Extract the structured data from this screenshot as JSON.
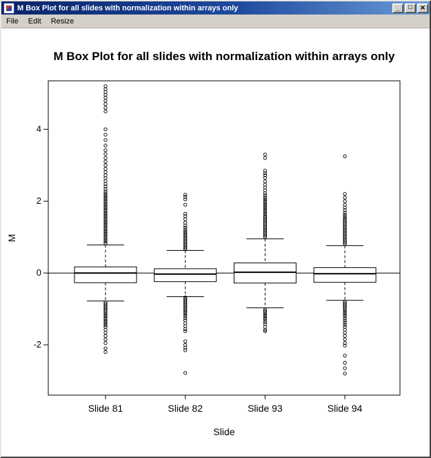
{
  "window": {
    "title": "M Box Plot for all slides with normalization within arrays only",
    "controls": {
      "minimize": "_",
      "maximize": "□",
      "close": "×"
    },
    "menus": [
      {
        "label": "File"
      },
      {
        "label": "Edit"
      },
      {
        "label": "Resize"
      }
    ]
  },
  "chart_data": {
    "type": "boxplot",
    "title": "M Box Plot for all slides with normalization within arrays only",
    "xlabel": "Slide",
    "ylabel": "M",
    "categories": [
      "Slide 81",
      "Slide 82",
      "Slide 93",
      "Slide 94"
    ],
    "yticks": [
      -2,
      0,
      2,
      4
    ],
    "ylim": [
      -3.4,
      5.35
    ],
    "reference_line_y": 0,
    "grid": false,
    "groups": [
      {
        "label": "Slide 81",
        "q1": -0.27,
        "median": 0.0,
        "q3": 0.17,
        "whisker_low": -0.78,
        "whisker_high": 0.78,
        "outliers_high": [
          0.82,
          0.87,
          0.92,
          0.97,
          1.02,
          1.07,
          1.12,
          1.17,
          1.22,
          1.27,
          1.32,
          1.37,
          1.42,
          1.47,
          1.52,
          1.57,
          1.62,
          1.67,
          1.72,
          1.77,
          1.82,
          1.87,
          1.92,
          1.97,
          2.02,
          2.07,
          2.12,
          2.17,
          2.22,
          2.27,
          2.34,
          2.41,
          2.48,
          2.56,
          2.64,
          2.72,
          2.81,
          2.9,
          3.0,
          3.1,
          3.2,
          3.31,
          3.42,
          3.55,
          3.7,
          3.85,
          4.0,
          4.5,
          4.6,
          4.7,
          4.8,
          4.88,
          4.96,
          5.04,
          5.12,
          5.2
        ],
        "outliers_low": [
          -0.82,
          -0.86,
          -0.9,
          -0.94,
          -0.98,
          -1.02,
          -1.06,
          -1.1,
          -1.15,
          -1.2,
          -1.25,
          -1.3,
          -1.35,
          -1.4,
          -1.45,
          -1.5,
          -1.58,
          -1.66,
          -1.75,
          -1.85,
          -1.95,
          -2.1,
          -2.2
        ]
      },
      {
        "label": "Slide 82",
        "q1": -0.24,
        "median": -0.03,
        "q3": 0.12,
        "whisker_low": -0.66,
        "whisker_high": 0.63,
        "outliers_high": [
          0.66,
          0.7,
          0.74,
          0.78,
          0.82,
          0.86,
          0.9,
          0.94,
          0.98,
          1.02,
          1.06,
          1.1,
          1.15,
          1.2,
          1.26,
          1.32,
          1.4,
          1.5,
          1.58,
          1.65,
          1.9,
          2.05,
          2.12,
          2.18
        ],
        "outliers_low": [
          -0.68,
          -0.72,
          -0.76,
          -0.8,
          -0.84,
          -0.88,
          -0.92,
          -0.96,
          -1.0,
          -1.05,
          -1.1,
          -1.15,
          -1.2,
          -1.26,
          -1.32,
          -1.4,
          -1.48,
          -1.56,
          -1.62,
          -1.9,
          -2.0,
          -2.08,
          -2.15,
          -2.78
        ]
      },
      {
        "label": "Slide 93",
        "q1": -0.28,
        "median": 0.02,
        "q3": 0.28,
        "whisker_low": -0.97,
        "whisker_high": 0.95,
        "outliers_high": [
          1.0,
          1.04,
          1.08,
          1.12,
          1.16,
          1.2,
          1.24,
          1.28,
          1.32,
          1.36,
          1.4,
          1.44,
          1.48,
          1.52,
          1.56,
          1.6,
          1.65,
          1.7,
          1.75,
          1.8,
          1.85,
          1.9,
          1.95,
          2.0,
          2.05,
          2.1,
          2.16,
          2.22,
          2.3,
          2.38,
          2.46,
          2.55,
          2.65,
          2.72,
          2.78,
          2.85,
          3.2,
          3.3
        ],
        "outliers_low": [
          -1.02,
          -1.06,
          -1.1,
          -1.15,
          -1.2,
          -1.25,
          -1.3,
          -1.36,
          -1.42,
          -1.5,
          -1.58,
          -1.62
        ]
      },
      {
        "label": "Slide 94",
        "q1": -0.26,
        "median": -0.02,
        "q3": 0.15,
        "whisker_low": -0.76,
        "whisker_high": 0.76,
        "outliers_high": [
          0.8,
          0.84,
          0.88,
          0.92,
          0.96,
          1.0,
          1.04,
          1.08,
          1.12,
          1.16,
          1.2,
          1.24,
          1.28,
          1.32,
          1.36,
          1.4,
          1.44,
          1.48,
          1.52,
          1.57,
          1.62,
          1.68,
          1.75,
          1.82,
          1.9,
          2.0,
          2.1,
          2.2,
          3.25
        ],
        "outliers_low": [
          -0.8,
          -0.84,
          -0.88,
          -0.92,
          -0.96,
          -1.0,
          -1.05,
          -1.1,
          -1.15,
          -1.2,
          -1.26,
          -1.32,
          -1.38,
          -1.44,
          -1.5,
          -1.58,
          -1.66,
          -1.75,
          -1.85,
          -1.95,
          -2.02,
          -2.3,
          -2.5,
          -2.65,
          -2.8
        ]
      }
    ]
  }
}
